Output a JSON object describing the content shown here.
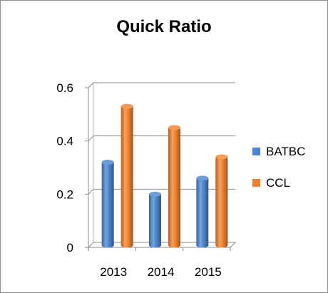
{
  "chart_data": {
    "type": "bar",
    "title": "Quick Ratio",
    "categories": [
      "2013",
      "2014",
      "2015"
    ],
    "series": [
      {
        "name": "BATBC",
        "values": [
          0.32,
          0.2,
          0.26
        ],
        "color": "#4a86cf"
      },
      {
        "name": "CCL",
        "values": [
          0.53,
          0.45,
          0.34
        ],
        "color": "#f0822c"
      }
    ],
    "ylim": [
      0,
      0.6
    ],
    "yticks": [
      "0",
      "0.2",
      "0.4",
      "0.6"
    ],
    "grid": true,
    "legend": "right",
    "style": "3d-cylinder"
  }
}
